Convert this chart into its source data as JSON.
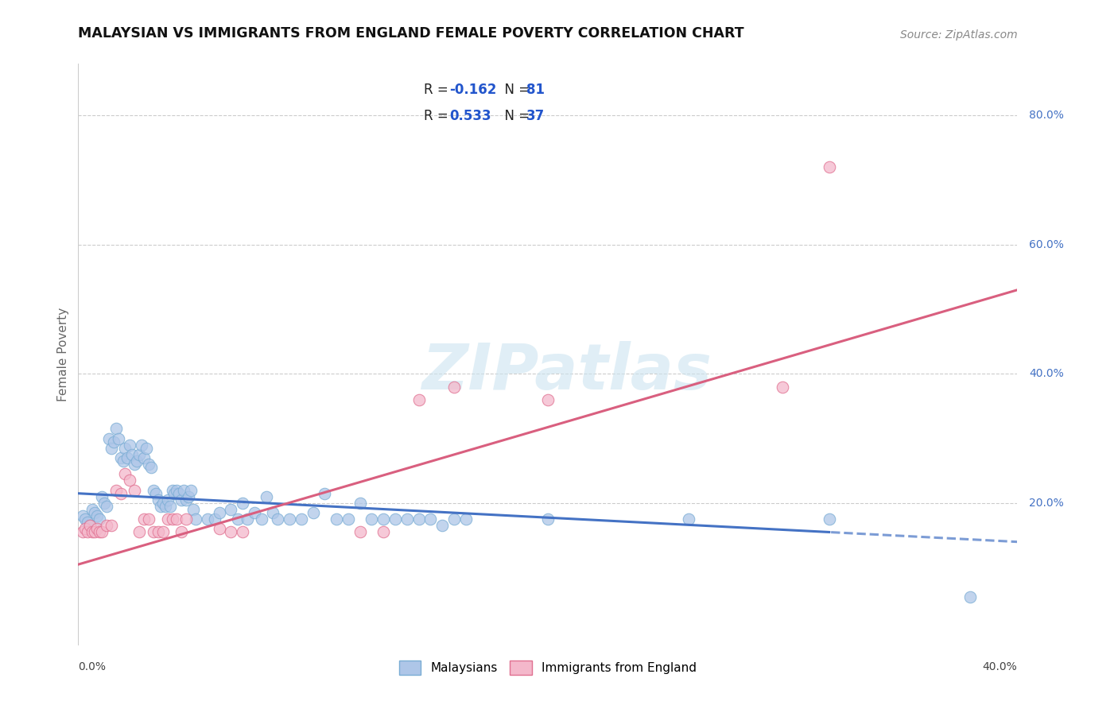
{
  "title": "MALAYSIAN VS IMMIGRANTS FROM ENGLAND FEMALE POVERTY CORRELATION CHART",
  "source": "Source: ZipAtlas.com",
  "ylabel": "Female Poverty",
  "right_yticks": [
    "80.0%",
    "60.0%",
    "40.0%",
    "20.0%"
  ],
  "right_ytick_vals": [
    0.8,
    0.6,
    0.4,
    0.2
  ],
  "xlim": [
    0.0,
    0.4
  ],
  "ylim": [
    -0.02,
    0.88
  ],
  "malaysian_color": "#aec6e8",
  "malaysia_edge": "#7aadd4",
  "england_color": "#f4b8cb",
  "england_edge": "#e07090",
  "trend_blue": "#4472c4",
  "trend_pink": "#d95f7f",
  "watermark_color": "#cce4f0",
  "malaysian_points": [
    [
      0.002,
      0.18
    ],
    [
      0.003,
      0.175
    ],
    [
      0.004,
      0.17
    ],
    [
      0.005,
      0.165
    ],
    [
      0.006,
      0.19
    ],
    [
      0.007,
      0.185
    ],
    [
      0.008,
      0.18
    ],
    [
      0.009,
      0.175
    ],
    [
      0.01,
      0.21
    ],
    [
      0.011,
      0.2
    ],
    [
      0.012,
      0.195
    ],
    [
      0.013,
      0.3
    ],
    [
      0.014,
      0.285
    ],
    [
      0.015,
      0.295
    ],
    [
      0.016,
      0.315
    ],
    [
      0.017,
      0.3
    ],
    [
      0.018,
      0.27
    ],
    [
      0.019,
      0.265
    ],
    [
      0.02,
      0.285
    ],
    [
      0.021,
      0.27
    ],
    [
      0.022,
      0.29
    ],
    [
      0.023,
      0.275
    ],
    [
      0.024,
      0.26
    ],
    [
      0.025,
      0.265
    ],
    [
      0.026,
      0.275
    ],
    [
      0.027,
      0.29
    ],
    [
      0.028,
      0.27
    ],
    [
      0.029,
      0.285
    ],
    [
      0.03,
      0.26
    ],
    [
      0.031,
      0.255
    ],
    [
      0.032,
      0.22
    ],
    [
      0.033,
      0.215
    ],
    [
      0.034,
      0.205
    ],
    [
      0.035,
      0.195
    ],
    [
      0.036,
      0.2
    ],
    [
      0.037,
      0.195
    ],
    [
      0.038,
      0.205
    ],
    [
      0.039,
      0.195
    ],
    [
      0.04,
      0.22
    ],
    [
      0.041,
      0.215
    ],
    [
      0.042,
      0.22
    ],
    [
      0.043,
      0.215
    ],
    [
      0.044,
      0.205
    ],
    [
      0.045,
      0.22
    ],
    [
      0.046,
      0.205
    ],
    [
      0.047,
      0.21
    ],
    [
      0.048,
      0.22
    ],
    [
      0.049,
      0.19
    ],
    [
      0.05,
      0.175
    ],
    [
      0.055,
      0.175
    ],
    [
      0.058,
      0.175
    ],
    [
      0.06,
      0.185
    ],
    [
      0.065,
      0.19
    ],
    [
      0.068,
      0.175
    ],
    [
      0.07,
      0.2
    ],
    [
      0.072,
      0.175
    ],
    [
      0.075,
      0.185
    ],
    [
      0.078,
      0.175
    ],
    [
      0.08,
      0.21
    ],
    [
      0.083,
      0.185
    ],
    [
      0.085,
      0.175
    ],
    [
      0.09,
      0.175
    ],
    [
      0.095,
      0.175
    ],
    [
      0.1,
      0.185
    ],
    [
      0.105,
      0.215
    ],
    [
      0.11,
      0.175
    ],
    [
      0.115,
      0.175
    ],
    [
      0.12,
      0.2
    ],
    [
      0.125,
      0.175
    ],
    [
      0.13,
      0.175
    ],
    [
      0.135,
      0.175
    ],
    [
      0.14,
      0.175
    ],
    [
      0.145,
      0.175
    ],
    [
      0.15,
      0.175
    ],
    [
      0.155,
      0.165
    ],
    [
      0.16,
      0.175
    ],
    [
      0.165,
      0.175
    ],
    [
      0.2,
      0.175
    ],
    [
      0.26,
      0.175
    ],
    [
      0.32,
      0.175
    ],
    [
      0.38,
      0.055
    ]
  ],
  "england_points": [
    [
      0.002,
      0.155
    ],
    [
      0.003,
      0.16
    ],
    [
      0.004,
      0.155
    ],
    [
      0.005,
      0.165
    ],
    [
      0.006,
      0.155
    ],
    [
      0.007,
      0.155
    ],
    [
      0.008,
      0.16
    ],
    [
      0.009,
      0.155
    ],
    [
      0.01,
      0.155
    ],
    [
      0.012,
      0.165
    ],
    [
      0.014,
      0.165
    ],
    [
      0.016,
      0.22
    ],
    [
      0.018,
      0.215
    ],
    [
      0.02,
      0.245
    ],
    [
      0.022,
      0.235
    ],
    [
      0.024,
      0.22
    ],
    [
      0.026,
      0.155
    ],
    [
      0.028,
      0.175
    ],
    [
      0.03,
      0.175
    ],
    [
      0.032,
      0.155
    ],
    [
      0.034,
      0.155
    ],
    [
      0.036,
      0.155
    ],
    [
      0.038,
      0.175
    ],
    [
      0.04,
      0.175
    ],
    [
      0.042,
      0.175
    ],
    [
      0.044,
      0.155
    ],
    [
      0.046,
      0.175
    ],
    [
      0.06,
      0.16
    ],
    [
      0.065,
      0.155
    ],
    [
      0.07,
      0.155
    ],
    [
      0.12,
      0.155
    ],
    [
      0.13,
      0.155
    ],
    [
      0.145,
      0.36
    ],
    [
      0.16,
      0.38
    ],
    [
      0.2,
      0.36
    ],
    [
      0.3,
      0.38
    ],
    [
      0.32,
      0.72
    ]
  ],
  "mal_trend_x": [
    0.0,
    0.4
  ],
  "mal_trend_y": [
    0.215,
    0.14
  ],
  "mal_trend_solid_end": 0.32,
  "eng_trend_x": [
    0.0,
    0.4
  ],
  "eng_trend_y": [
    0.105,
    0.53
  ]
}
